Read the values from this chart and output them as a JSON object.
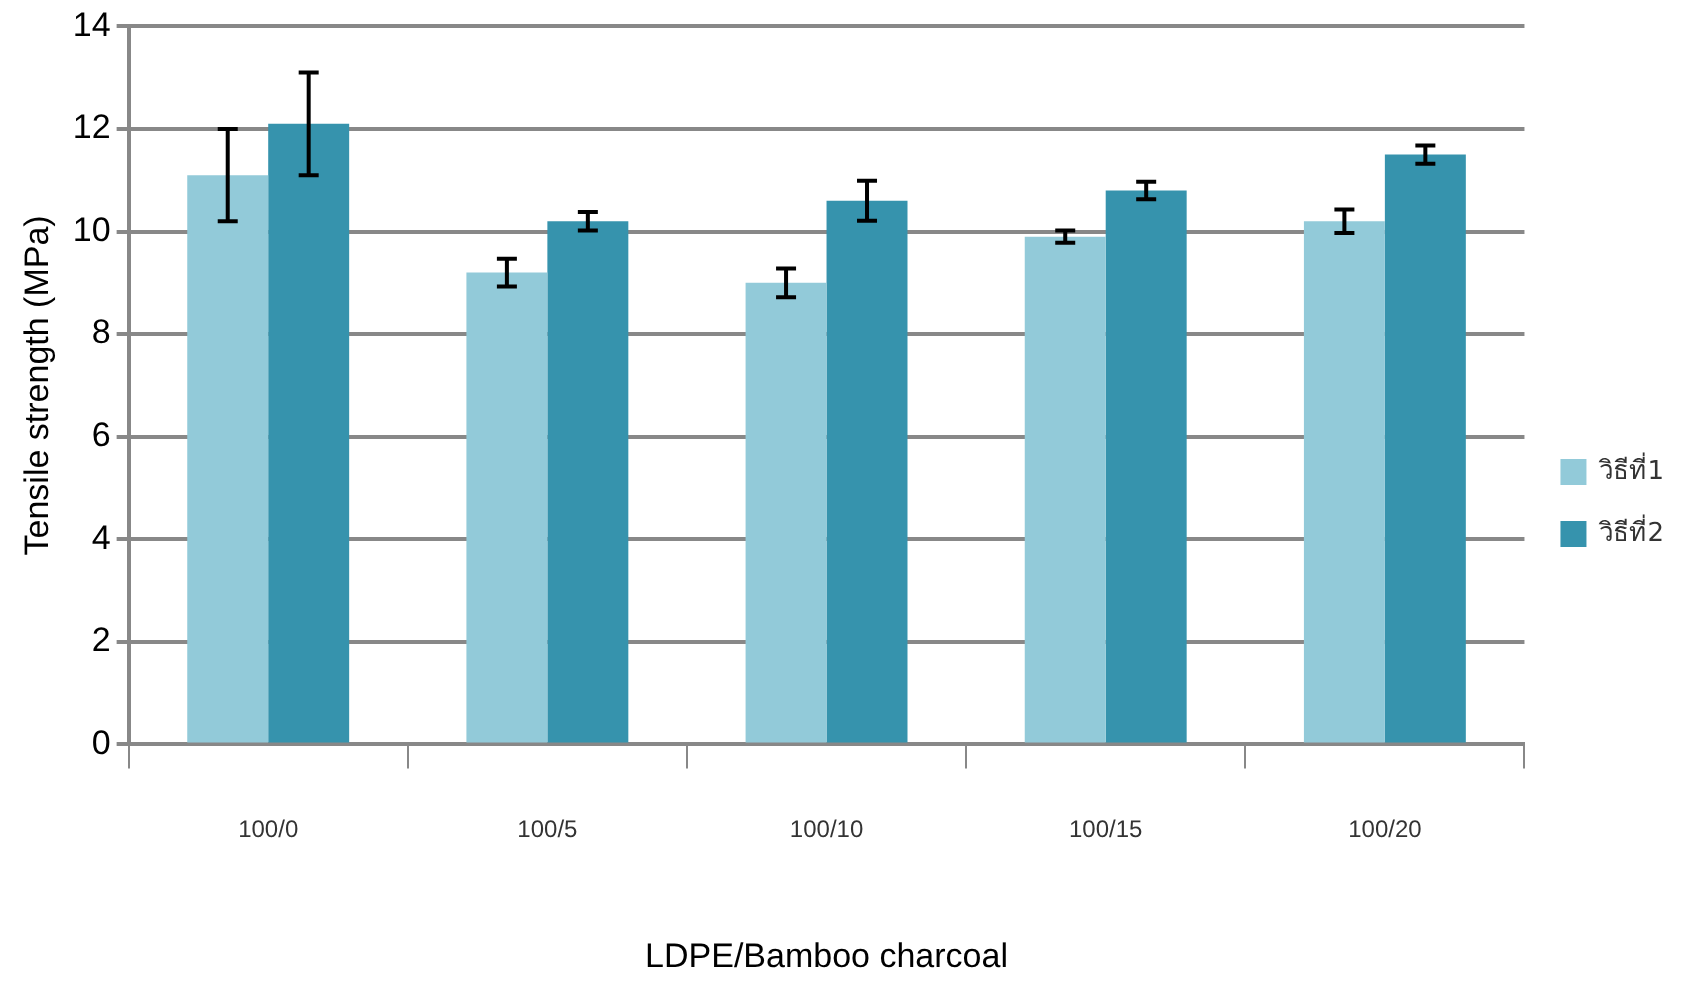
{
  "chart_data": {
    "type": "bar",
    "xlabel": "LDPE/Bamboo charcoal",
    "ylabel": "Tensile strength (MPa)",
    "categories": [
      "100/0",
      "100/5",
      "100/10",
      "100/15",
      "100/20"
    ],
    "series": [
      {
        "name": "วิธีที่1",
        "color": "#92cad9",
        "values": [
          11.1,
          9.2,
          9.0,
          9.9,
          10.2
        ],
        "errors": [
          0.9,
          0.27,
          0.28,
          0.12,
          0.23
        ]
      },
      {
        "name": "วิธีที่2",
        "color": "#3693ad",
        "values": [
          12.1,
          10.2,
          10.6,
          10.8,
          11.5
        ],
        "errors": [
          1.0,
          0.18,
          0.39,
          0.17,
          0.18
        ]
      }
    ],
    "ylim": [
      0,
      14
    ],
    "yticks": [
      0,
      2,
      4,
      6,
      8,
      10,
      12,
      14
    ],
    "grid": "y",
    "legend": "right"
  }
}
